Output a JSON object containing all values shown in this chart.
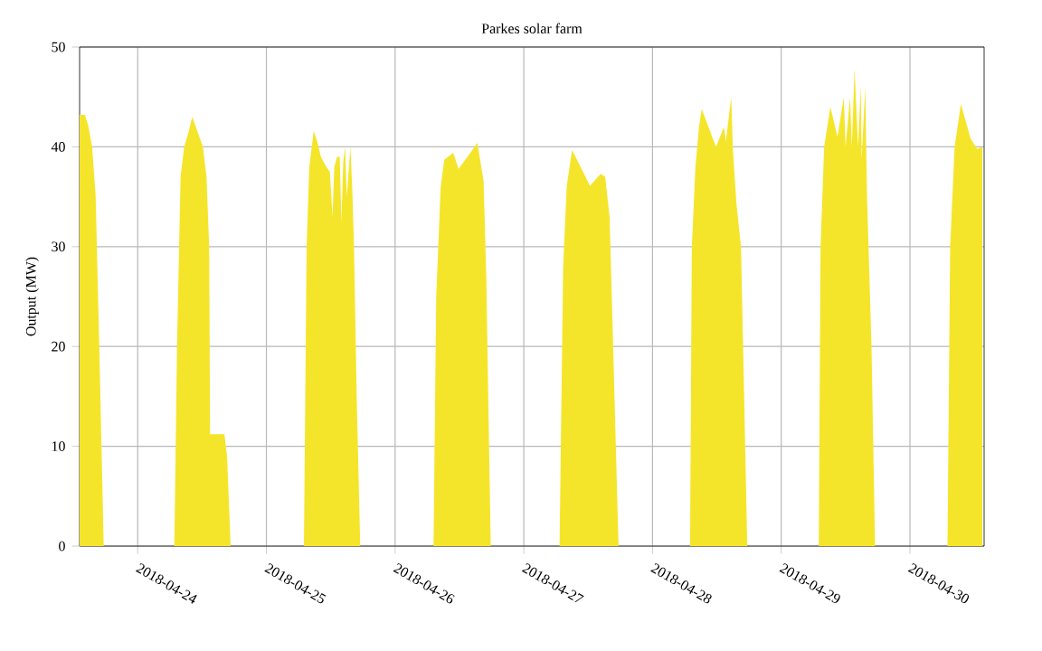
{
  "chart_data": {
    "type": "area",
    "title": "Parkes solar farm",
    "ylabel": "Output (MW)",
    "xlim": [
      "2018-04-23T13:10",
      "2018-04-30T13:50"
    ],
    "ylim": [
      0,
      50
    ],
    "yticks": [
      0,
      10,
      20,
      30,
      40,
      50
    ],
    "xticks": [
      "2018-04-24",
      "2018-04-25",
      "2018-04-26",
      "2018-04-27",
      "2018-04-28",
      "2018-04-29",
      "2018-04-30"
    ],
    "grid": true,
    "series": [
      {
        "color": "#f5e52a",
        "x": [
          "2018-04-23T13:10",
          "2018-04-23T14:10",
          "2018-04-23T14:50",
          "2018-04-23T15:30",
          "2018-04-23T16:10",
          "2018-04-23T16:50",
          "2018-04-23T17:40",
          "2018-04-24T06:50",
          "2018-04-24T07:20",
          "2018-04-24T08:00",
          "2018-04-24T08:40",
          "2018-04-24T09:30",
          "2018-04-24T10:10",
          "2018-04-24T10:50",
          "2018-04-24T11:30",
          "2018-04-24T12:10",
          "2018-04-24T12:50",
          "2018-04-24T13:20",
          "2018-04-24T13:30",
          "2018-04-24T14:50",
          "2018-04-24T16:10",
          "2018-04-24T16:40",
          "2018-04-24T17:20",
          "2018-04-25T07:00",
          "2018-04-25T07:30",
          "2018-04-25T08:00",
          "2018-04-25T08:50",
          "2018-04-25T09:30",
          "2018-04-25T10:10",
          "2018-04-25T11:10",
          "2018-04-25T11:50",
          "2018-04-25T12:20",
          "2018-04-25T12:40",
          "2018-04-25T13:10",
          "2018-04-25T13:40",
          "2018-04-25T14:00",
          "2018-04-25T14:20",
          "2018-04-25T14:40",
          "2018-04-25T15:00",
          "2018-04-25T15:40",
          "2018-04-25T16:00",
          "2018-04-25T16:20",
          "2018-04-25T16:50",
          "2018-04-25T17:30",
          "2018-04-26T07:10",
          "2018-04-26T07:40",
          "2018-04-26T08:30",
          "2018-04-26T09:10",
          "2018-04-26T10:50",
          "2018-04-26T11:50",
          "2018-04-26T13:30",
          "2018-04-26T15:20",
          "2018-04-26T16:30",
          "2018-04-26T17:00",
          "2018-04-26T17:50",
          "2018-04-27T06:40",
          "2018-04-27T07:20",
          "2018-04-27T08:00",
          "2018-04-27T09:00",
          "2018-04-27T12:20",
          "2018-04-27T14:20",
          "2018-04-27T15:10",
          "2018-04-27T16:00",
          "2018-04-27T17:40",
          "2018-04-28T07:00",
          "2018-04-28T07:20",
          "2018-04-28T08:00",
          "2018-04-28T08:40",
          "2018-04-28T09:10",
          "2018-04-28T11:50",
          "2018-04-28T13:20",
          "2018-04-28T13:40",
          "2018-04-28T14:40",
          "2018-04-28T15:00",
          "2018-04-28T15:40",
          "2018-04-28T16:30",
          "2018-04-28T17:40",
          "2018-04-29T07:00",
          "2018-04-29T07:20",
          "2018-04-29T08:00",
          "2018-04-29T09:10",
          "2018-04-29T10:30",
          "2018-04-29T11:40",
          "2018-04-29T12:00",
          "2018-04-29T12:50",
          "2018-04-29T13:10",
          "2018-04-29T13:40",
          "2018-04-29T14:20",
          "2018-04-29T14:50",
          "2018-04-29T15:00",
          "2018-04-29T15:40",
          "2018-04-29T16:00",
          "2018-04-29T16:50",
          "2018-04-29T17:30",
          "2018-04-30T07:00",
          "2018-04-30T07:30",
          "2018-04-30T08:20",
          "2018-04-30T09:30",
          "2018-04-30T11:20",
          "2018-04-30T12:30",
          "2018-04-30T13:30"
        ],
        "values": [
          43.2,
          43.2,
          42,
          40,
          35,
          20,
          0,
          0,
          20,
          37,
          40,
          41.5,
          43,
          42,
          41,
          40,
          37,
          30,
          11.2,
          11.2,
          11.2,
          9,
          0,
          0,
          30,
          38,
          41.6,
          40.5,
          39,
          38,
          37.5,
          33,
          38,
          39,
          39,
          32.5,
          38.5,
          40,
          35,
          40,
          36,
          30,
          15,
          0,
          0,
          25,
          36,
          38.7,
          39.4,
          37.8,
          39,
          40.4,
          36.6,
          27,
          0,
          0,
          28,
          36,
          39.7,
          36.1,
          37.3,
          37,
          33,
          0,
          0,
          30,
          38,
          42,
          43.8,
          40,
          42,
          40.5,
          45,
          39.6,
          34.2,
          30,
          0,
          0,
          30,
          40,
          44,
          41,
          45,
          40,
          45,
          40,
          47.8,
          40,
          46.2,
          38.8,
          46,
          35,
          20,
          0,
          0,
          30,
          40,
          44.3,
          40.8,
          39.8,
          40
        ]
      }
    ]
  }
}
